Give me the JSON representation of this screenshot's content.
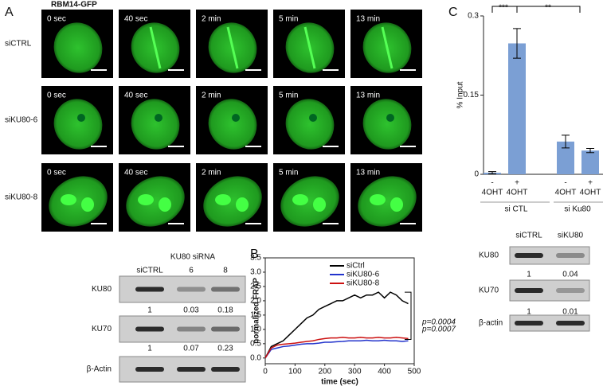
{
  "panel_a": {
    "letter": "A",
    "title": "RBM14-GFP",
    "timepoints": [
      "0 sec",
      "40 sec",
      "2 min",
      "5 min",
      "13 min"
    ],
    "rows": [
      "siCTRL",
      "siKU80-6",
      "siKU80-8"
    ]
  },
  "blot_a": {
    "header": "KU80 siRNA",
    "lanes": [
      "siCTRL",
      "6",
      "8"
    ],
    "bands": [
      {
        "name": "KU80",
        "quant": [
          1,
          0.03,
          0.18
        ]
      },
      {
        "name": "KU70",
        "quant": [
          1,
          0.07,
          0.23
        ]
      },
      {
        "name": "β-Actin"
      }
    ]
  },
  "blot_c": {
    "lanes": [
      "siCTRL",
      "siKU80"
    ],
    "bands": [
      {
        "name": "KU80",
        "quant": [
          1,
          0.04
        ]
      },
      {
        "name": "KU70",
        "quant": [
          1,
          0.01
        ]
      },
      {
        "name": "β-actin"
      }
    ]
  },
  "chart_data": [
    {
      "type": "line",
      "letter": "B",
      "xlabel": "time (sec)",
      "ylabel": "normalized FRAP",
      "x": [
        0,
        20,
        40,
        60,
        80,
        100,
        120,
        140,
        160,
        180,
        200,
        220,
        240,
        260,
        280,
        300,
        320,
        340,
        360,
        380,
        400,
        420,
        440,
        460,
        480
      ],
      "series": [
        {
          "name": "siCtrl",
          "color": "#000000",
          "values": [
            0,
            0.4,
            0.5,
            0.6,
            0.8,
            1.0,
            1.2,
            1.4,
            1.5,
            1.7,
            1.8,
            1.9,
            2.0,
            2.0,
            2.1,
            2.2,
            2.1,
            2.2,
            2.2,
            2.3,
            2.1,
            2.3,
            2.2,
            2.0,
            1.9
          ]
        },
        {
          "name": "siKU80-6",
          "color": "#2233cc",
          "values": [
            0,
            0.3,
            0.35,
            0.4,
            0.42,
            0.45,
            0.48,
            0.5,
            0.5,
            0.52,
            0.55,
            0.55,
            0.57,
            0.58,
            0.6,
            0.6,
            0.6,
            0.62,
            0.6,
            0.6,
            0.62,
            0.6,
            0.6,
            0.58,
            0.6
          ]
        },
        {
          "name": "siKU80-8",
          "color": "#cc1111",
          "values": [
            0,
            0.35,
            0.45,
            0.48,
            0.5,
            0.52,
            0.55,
            0.58,
            0.6,
            0.65,
            0.68,
            0.7,
            0.7,
            0.72,
            0.7,
            0.7,
            0.72,
            0.7,
            0.7,
            0.72,
            0.7,
            0.7,
            0.72,
            0.7,
            0.68
          ]
        }
      ],
      "xlim": [
        0,
        500
      ],
      "ylim": [
        -0.2,
        3.5
      ],
      "xticks": [
        0,
        100,
        200,
        300,
        400,
        500
      ],
      "yticks": [
        {
          "value": 0,
          "label": "0.0"
        },
        {
          "value": 0.5,
          "label": "0.5"
        },
        {
          "value": 1,
          "label": "1.0"
        },
        {
          "value": 1.5,
          "label": "1.5"
        },
        {
          "value": 2,
          "label": "2.0"
        },
        {
          "value": 2.5,
          "label": "2.5"
        },
        {
          "value": 3,
          "label": "3.0"
        },
        {
          "value": 3.5,
          "label": "3.5"
        }
      ],
      "annotations": [
        {
          "text": "p=0.0004",
          "color": "#2233cc"
        },
        {
          "text": "p=0.0007",
          "color": "#cc1111"
        }
      ],
      "legend": "upper center"
    },
    {
      "type": "bar",
      "letter": "C",
      "ylabel": "% Input",
      "categories": [
        "-",
        "+",
        "-",
        "+"
      ],
      "sublabel": "4OHT",
      "groups": [
        "si CTL",
        "si Ku80"
      ],
      "values": [
        0.003,
        0.248,
        0.062,
        0.045
      ],
      "errors": [
        0.002,
        0.028,
        0.012,
        0.004
      ],
      "color": "#7b9fd4",
      "ylim": [
        0,
        0.3
      ],
      "yticks": [
        0,
        0.15,
        0.3
      ],
      "annotations": [
        "***",
        "**"
      ]
    }
  ]
}
